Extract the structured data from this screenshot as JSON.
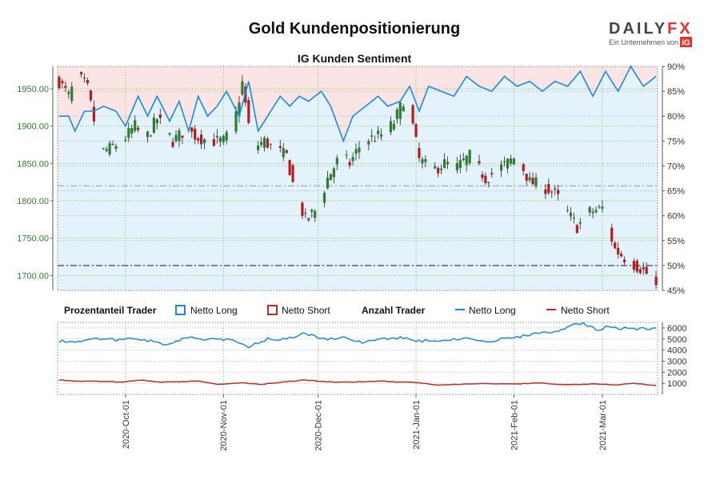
{
  "title": "Gold Kundenpositionierung",
  "subtitle": "IG Kunden Sentiment",
  "brand": {
    "name_a": "DAILY",
    "name_b": "FX",
    "tagline": "Ein Unternehmen von",
    "mark": "IG",
    "color_fx": "#e8302f",
    "color_ig": "#e8302f"
  },
  "legend": {
    "left_header": "Prozentanteil Trader",
    "right_header": "Anzahl Trader",
    "long_label": "Netto Long",
    "short_label": "Netto Short",
    "long_label_2": "Netto Long",
    "short_label_2": "Netto Short"
  },
  "colors": {
    "up": "#2e7d32",
    "down": "#b71c1c",
    "long": "#1e88e5",
    "short": "#c62828",
    "long_zone": "#e3f2fb",
    "short_zone": "#fbe4e4"
  },
  "chart_data": [
    {
      "type": "candlestick+line",
      "name": "price_and_sentiment",
      "ylim_left": [
        1680,
        1980
      ],
      "yticks_left": [
        1700,
        1750,
        1800,
        1850,
        1900,
        1950
      ],
      "ytick_labels_left": [
        "1700.00",
        "1750.00",
        "1800.00",
        "1850.00",
        "1900.00",
        "1950.00"
      ],
      "ylim_right": [
        45,
        90
      ],
      "yticks_right": [
        45,
        50,
        55,
        60,
        65,
        70,
        75,
        80,
        85,
        90
      ],
      "ytick_labels_right": [
        "45%",
        "50%",
        "55%",
        "60%",
        "65%",
        "70%",
        "75%",
        "80%",
        "85%",
        "90%"
      ],
      "reference_lines_pct": [
        50,
        66
      ],
      "start_date": "2020-09-01",
      "bars": 130,
      "price_anchors": [
        [
          0,
          1960
        ],
        [
          3,
          1940
        ],
        [
          6,
          1968
        ],
        [
          9,
          1950
        ],
        [
          13,
          1865
        ],
        [
          16,
          1870
        ],
        [
          20,
          1880
        ],
        [
          24,
          1900
        ],
        [
          27,
          1880
        ],
        [
          31,
          1910
        ],
        [
          36,
          1880
        ],
        [
          40,
          1895
        ],
        [
          44,
          1885
        ],
        [
          48,
          1880
        ],
        [
          52,
          1880
        ],
        [
          55,
          1895
        ],
        [
          58,
          1958
        ],
        [
          61,
          1870
        ],
        [
          65,
          1880
        ],
        [
          68,
          1870
        ],
        [
          72,
          1860
        ],
        [
          75,
          1805
        ],
        [
          78,
          1775
        ],
        [
          82,
          1790
        ],
        [
          85,
          1830
        ],
        [
          89,
          1860
        ],
        [
          92,
          1850
        ],
        [
          96,
          1880
        ],
        [
          100,
          1885
        ],
        [
          103,
          1890
        ],
        [
          106,
          1905
        ],
        [
          110,
          1945
        ],
        [
          114,
          1855
        ],
        [
          118,
          1840
        ],
        [
          122,
          1850
        ],
        [
          126,
          1845
        ],
        [
          130,
          1860
        ],
        [
          135,
          1830
        ],
        [
          140,
          1845
        ],
        [
          145,
          1860
        ],
        [
          149,
          1825
        ],
        [
          153,
          1820
        ],
        [
          157,
          1810
        ],
        [
          160,
          1790
        ],
        [
          164,
          1765
        ],
        [
          168,
          1785
        ],
        [
          172,
          1790
        ],
        [
          176,
          1735
        ],
        [
          180,
          1720
        ],
        [
          184,
          1710
        ],
        [
          188,
          1695
        ],
        [
          189,
          1685
        ]
      ],
      "sentiment_anchors": [
        [
          0,
          80
        ],
        [
          3,
          80
        ],
        [
          5,
          77
        ],
        [
          8,
          81
        ],
        [
          11,
          81
        ],
        [
          14,
          82
        ],
        [
          18,
          81
        ],
        [
          21,
          78
        ],
        [
          25,
          84
        ],
        [
          28,
          80
        ],
        [
          31,
          84
        ],
        [
          35,
          79
        ],
        [
          38,
          83
        ],
        [
          41,
          77
        ],
        [
          44,
          84
        ],
        [
          47,
          80
        ],
        [
          50,
          82
        ],
        [
          53,
          85
        ],
        [
          57,
          80
        ],
        [
          60,
          87
        ],
        [
          63,
          77
        ],
        [
          67,
          81
        ],
        [
          70,
          84
        ],
        [
          73,
          82
        ],
        [
          76,
          84
        ],
        [
          79,
          83
        ],
        [
          83,
          85
        ],
        [
          86,
          82
        ],
        [
          90,
          75
        ],
        [
          93,
          80
        ],
        [
          97,
          82
        ],
        [
          101,
          84
        ],
        [
          104,
          82
        ],
        [
          108,
          83
        ],
        [
          111,
          86
        ],
        [
          114,
          81
        ],
        [
          117,
          86
        ],
        [
          121,
          85
        ],
        [
          125,
          84
        ],
        [
          129,
          88
        ],
        [
          133,
          86
        ],
        [
          137,
          85
        ],
        [
          141,
          88
        ],
        [
          145,
          86
        ],
        [
          149,
          87
        ],
        [
          153,
          85
        ],
        [
          157,
          87
        ],
        [
          161,
          86
        ],
        [
          165,
          89
        ],
        [
          169,
          84
        ],
        [
          173,
          89
        ],
        [
          177,
          85
        ],
        [
          181,
          90
        ],
        [
          185,
          86
        ],
        [
          189,
          88
        ]
      ],
      "x_dates": [
        "2020-Oct-01",
        "2020-Nov-01",
        "2020-Dec-01",
        "2021-Jan-01",
        "2021-Feb-01",
        "2021-Mar-01"
      ]
    },
    {
      "type": "line",
      "name": "trader_counts",
      "ylim": [
        0,
        6500
      ],
      "yticks": [
        1000,
        2000,
        3000,
        4000,
        5000,
        6000
      ],
      "ytick_labels": [
        "1000",
        "2000",
        "3000",
        "4000",
        "5000",
        "6000"
      ],
      "series": [
        {
          "name": "Netto Long",
          "anchors": [
            [
              0,
              4800
            ],
            [
              6,
              4800
            ],
            [
              12,
              5100
            ],
            [
              18,
              4900
            ],
            [
              24,
              5000
            ],
            [
              30,
              4800
            ],
            [
              34,
              4400
            ],
            [
              40,
              5200
            ],
            [
              46,
              4900
            ],
            [
              54,
              5000
            ],
            [
              60,
              4300
            ],
            [
              66,
              5000
            ],
            [
              72,
              5000
            ],
            [
              78,
              5500
            ],
            [
              84,
              5000
            ],
            [
              90,
              5100
            ],
            [
              96,
              4700
            ],
            [
              102,
              5000
            ],
            [
              108,
              5100
            ],
            [
              114,
              4800
            ],
            [
              118,
              4900
            ],
            [
              124,
              4900
            ],
            [
              130,
              5100
            ],
            [
              136,
              4800
            ],
            [
              140,
              5000
            ],
            [
              146,
              5200
            ],
            [
              152,
              5600
            ],
            [
              158,
              5700
            ],
            [
              162,
              6300
            ],
            [
              166,
              6500
            ],
            [
              170,
              5800
            ],
            [
              174,
              6100
            ],
            [
              180,
              5900
            ],
            [
              189,
              6000
            ]
          ]
        },
        {
          "name": "Netto Short",
          "anchors": [
            [
              0,
              1300
            ],
            [
              6,
              1200
            ],
            [
              12,
              1200
            ],
            [
              20,
              1100
            ],
            [
              26,
              1300
            ],
            [
              32,
              1100
            ],
            [
              38,
              1150
            ],
            [
              44,
              1200
            ],
            [
              50,
              900
            ],
            [
              58,
              1050
            ],
            [
              64,
              900
            ],
            [
              70,
              1100
            ],
            [
              78,
              1300
            ],
            [
              84,
              1150
            ],
            [
              90,
              1100
            ],
            [
              96,
              1150
            ],
            [
              102,
              1200
            ],
            [
              108,
              1100
            ],
            [
              112,
              1100
            ],
            [
              120,
              850
            ],
            [
              126,
              900
            ],
            [
              134,
              1000
            ],
            [
              140,
              950
            ],
            [
              146,
              950
            ],
            [
              152,
              1050
            ],
            [
              158,
              900
            ],
            [
              164,
              900
            ],
            [
              170,
              950
            ],
            [
              176,
              850
            ],
            [
              182,
              1000
            ],
            [
              189,
              800
            ]
          ]
        }
      ]
    }
  ]
}
